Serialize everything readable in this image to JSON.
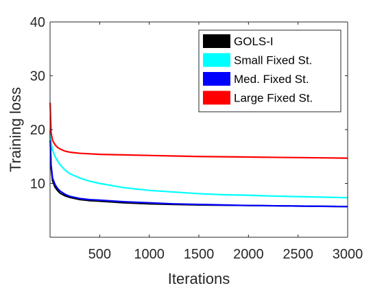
{
  "chart_data": {
    "type": "line",
    "title": "",
    "xlabel": "Iterations",
    "ylabel": "Training loss",
    "xlim": [
      0,
      3000
    ],
    "ylim": [
      0,
      40
    ],
    "x_ticks": [
      500,
      1000,
      1500,
      2000,
      2500,
      3000
    ],
    "y_ticks": [
      10,
      20,
      30,
      40
    ],
    "grid": false,
    "legend_position": "top-right",
    "series": [
      {
        "name": "GOLS-I",
        "color": "#000000",
        "x": [
          1,
          10,
          25,
          50,
          75,
          100,
          150,
          200,
          300,
          400,
          500,
          750,
          1000,
          1250,
          1500,
          1750,
          2000,
          2250,
          2500,
          2750,
          3000
        ],
        "y": [
          20,
          13,
          10.5,
          9.3,
          8.7,
          8.2,
          7.7,
          7.4,
          7.0,
          6.8,
          6.7,
          6.4,
          6.2,
          6.1,
          6.0,
          5.95,
          5.9,
          5.85,
          5.8,
          5.75,
          5.7
        ]
      },
      {
        "name": "Small Fixed St.",
        "color": "#00ffff",
        "x": [
          1,
          10,
          25,
          50,
          75,
          100,
          150,
          200,
          300,
          400,
          500,
          750,
          1000,
          1250,
          1500,
          1750,
          2000,
          2250,
          2500,
          2750,
          3000
        ],
        "y": [
          20,
          17.5,
          16.2,
          15.0,
          14.2,
          13.5,
          12.5,
          11.8,
          11.0,
          10.4,
          10.0,
          9.2,
          8.7,
          8.4,
          8.1,
          7.9,
          7.8,
          7.65,
          7.55,
          7.45,
          7.35
        ]
      },
      {
        "name": "Med. Fixed St.",
        "color": "#0000ff",
        "x": [
          1,
          10,
          25,
          50,
          75,
          100,
          150,
          200,
          300,
          400,
          500,
          750,
          1000,
          1250,
          1500,
          1750,
          2000,
          2250,
          2500,
          2750,
          3000
        ],
        "y": [
          18,
          13.5,
          11.0,
          9.8,
          9.1,
          8.6,
          8.0,
          7.6,
          7.2,
          7.0,
          6.9,
          6.6,
          6.4,
          6.2,
          6.1,
          6.0,
          5.9,
          5.85,
          5.8,
          5.75,
          5.7
        ]
      },
      {
        "name": "Large Fixed St.",
        "color": "#ff0000",
        "x": [
          1,
          10,
          25,
          50,
          75,
          100,
          150,
          200,
          300,
          400,
          500,
          750,
          1000,
          1250,
          1500,
          1750,
          2000,
          2250,
          2500,
          2750,
          3000
        ],
        "y": [
          25,
          19.5,
          18.0,
          17.2,
          16.7,
          16.4,
          16.0,
          15.8,
          15.6,
          15.5,
          15.4,
          15.3,
          15.2,
          15.1,
          15.0,
          14.95,
          14.9,
          14.85,
          14.8,
          14.75,
          14.7
        ]
      }
    ]
  }
}
